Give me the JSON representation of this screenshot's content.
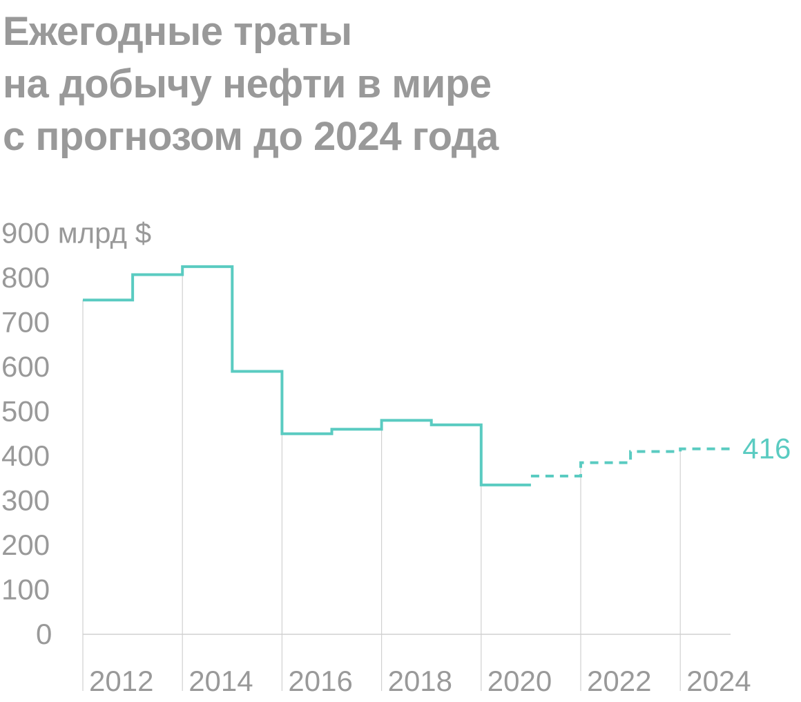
{
  "title_lines": [
    "Ежегодные траты",
    "на добычу нефти в мире",
    "с прогнозом до 2024 года"
  ],
  "colors": {
    "title": "#999999",
    "text": "#999999",
    "series": "#5acbc1",
    "grid": "#d0d0d0"
  },
  "chart_data": {
    "type": "line",
    "step": true,
    "title": "Ежегодные траты на добычу нефти в мире с прогнозом до 2024 года",
    "ylabel": "млрд $",
    "ylim": [
      0,
      900
    ],
    "yticks": [
      0,
      100,
      200,
      300,
      400,
      500,
      600,
      700,
      800,
      900
    ],
    "y_top_label": "900 млрд $",
    "xlim": [
      2012,
      2025
    ],
    "xticks": [
      2012,
      2014,
      2016,
      2018,
      2020,
      2022,
      2024
    ],
    "xtick_labels": [
      "2012",
      "2014",
      "2016",
      "2018",
      "2020",
      "2022",
      "2024"
    ],
    "grid": "vertical",
    "series": [
      {
        "style": "solid",
        "x": [
          2012,
          2013,
          2014,
          2015,
          2016,
          2017,
          2018,
          2019,
          2020
        ],
        "values": [
          750,
          807,
          825,
          590,
          450,
          460,
          480,
          470,
          335
        ]
      },
      {
        "style": "dashed",
        "x": [
          2021,
          2022,
          2023,
          2024
        ],
        "values": [
          355,
          385,
          410,
          416
        ]
      }
    ],
    "annotations": [
      {
        "text": "416",
        "x": 2024,
        "y": 416
      }
    ]
  }
}
